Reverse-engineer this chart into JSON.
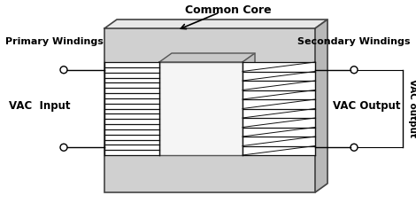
{
  "fig_width": 4.7,
  "fig_height": 2.38,
  "dpi": 100,
  "bg_color": "#ffffff",
  "core_face_color": "#d0d0d0",
  "core_top_color": "#e8e8e8",
  "core_right_color": "#b8b8b8",
  "core_inner_face_color": "#e0e0e0",
  "hole_color": "#f0f0f0",
  "winding_line_color": "#111111",
  "label_primary_windings": "Primary Windings",
  "label_secondary_windings": "Secondary Windings",
  "label_vac_input": "VAC  Input",
  "label_vac_output": "VAC Output",
  "label_vac_output_vert": "VAC output",
  "label_common_core": "Common Core",
  "text_color": "#000000"
}
